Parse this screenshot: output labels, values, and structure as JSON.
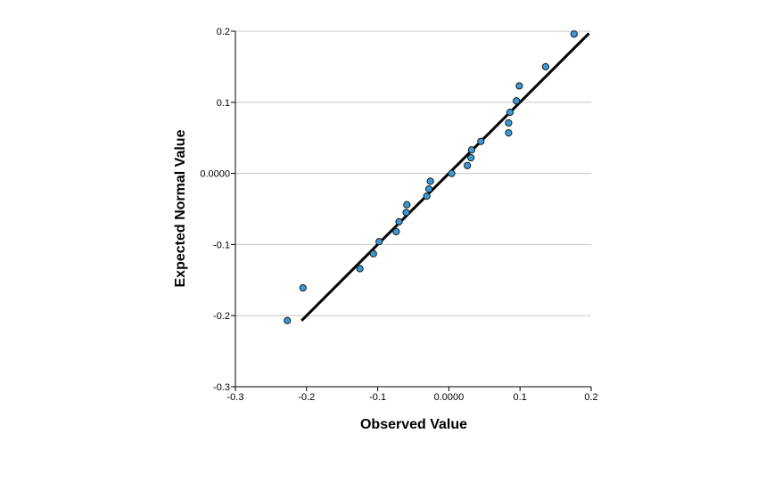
{
  "chart_data": {
    "type": "scatter",
    "title": "",
    "xlabel": "Observed Value",
    "ylabel": "Expected Normal Value",
    "xlim": [
      -0.3,
      0.2
    ],
    "ylim": [
      -0.3,
      0.2
    ],
    "x_ticks": [
      {
        "value": -0.3,
        "label": "-0.3"
      },
      {
        "value": -0.2,
        "label": "-0.2"
      },
      {
        "value": -0.1,
        "label": "-0.1"
      },
      {
        "value": 0.0,
        "label": "0.0000"
      },
      {
        "value": 0.1,
        "label": "0.1"
      },
      {
        "value": 0.2,
        "label": "0.2"
      }
    ],
    "y_ticks": [
      {
        "value": -0.3,
        "label": "-0.3"
      },
      {
        "value": -0.2,
        "label": "-0.2"
      },
      {
        "value": -0.1,
        "label": "-0.1"
      },
      {
        "value": 0.0,
        "label": "0.0000"
      },
      {
        "value": 0.1,
        "label": "0.1"
      },
      {
        "value": 0.2,
        "label": "0.2"
      }
    ],
    "grid": "horizontal",
    "points": [
      {
        "x": -0.227,
        "y": -0.207
      },
      {
        "x": -0.205,
        "y": -0.161
      },
      {
        "x": -0.125,
        "y": -0.134
      },
      {
        "x": -0.106,
        "y": -0.113
      },
      {
        "x": -0.098,
        "y": -0.096
      },
      {
        "x": -0.074,
        "y": -0.082
      },
      {
        "x": -0.07,
        "y": -0.068
      },
      {
        "x": -0.06,
        "y": -0.055
      },
      {
        "x": -0.059,
        "y": -0.044
      },
      {
        "x": -0.031,
        "y": -0.032
      },
      {
        "x": -0.028,
        "y": -0.022
      },
      {
        "x": -0.026,
        "y": -0.011
      },
      {
        "x": 0.004,
        "y": 0.0
      },
      {
        "x": 0.026,
        "y": 0.011
      },
      {
        "x": 0.031,
        "y": 0.022
      },
      {
        "x": 0.032,
        "y": 0.033
      },
      {
        "x": 0.045,
        "y": 0.045
      },
      {
        "x": 0.084,
        "y": 0.057
      },
      {
        "x": 0.084,
        "y": 0.071
      },
      {
        "x": 0.086,
        "y": 0.086
      },
      {
        "x": 0.095,
        "y": 0.102
      },
      {
        "x": 0.099,
        "y": 0.123
      },
      {
        "x": 0.136,
        "y": 0.15
      },
      {
        "x": 0.176,
        "y": 0.196
      }
    ],
    "reference_line": {
      "x": [
        -0.207,
        0.197
      ],
      "y": [
        -0.207,
        0.197
      ],
      "color": "#000000"
    },
    "marker_color": "#3a9ad9",
    "marker_edge_color": "#1a1a1a",
    "grid_color": "#c8c8c8"
  }
}
